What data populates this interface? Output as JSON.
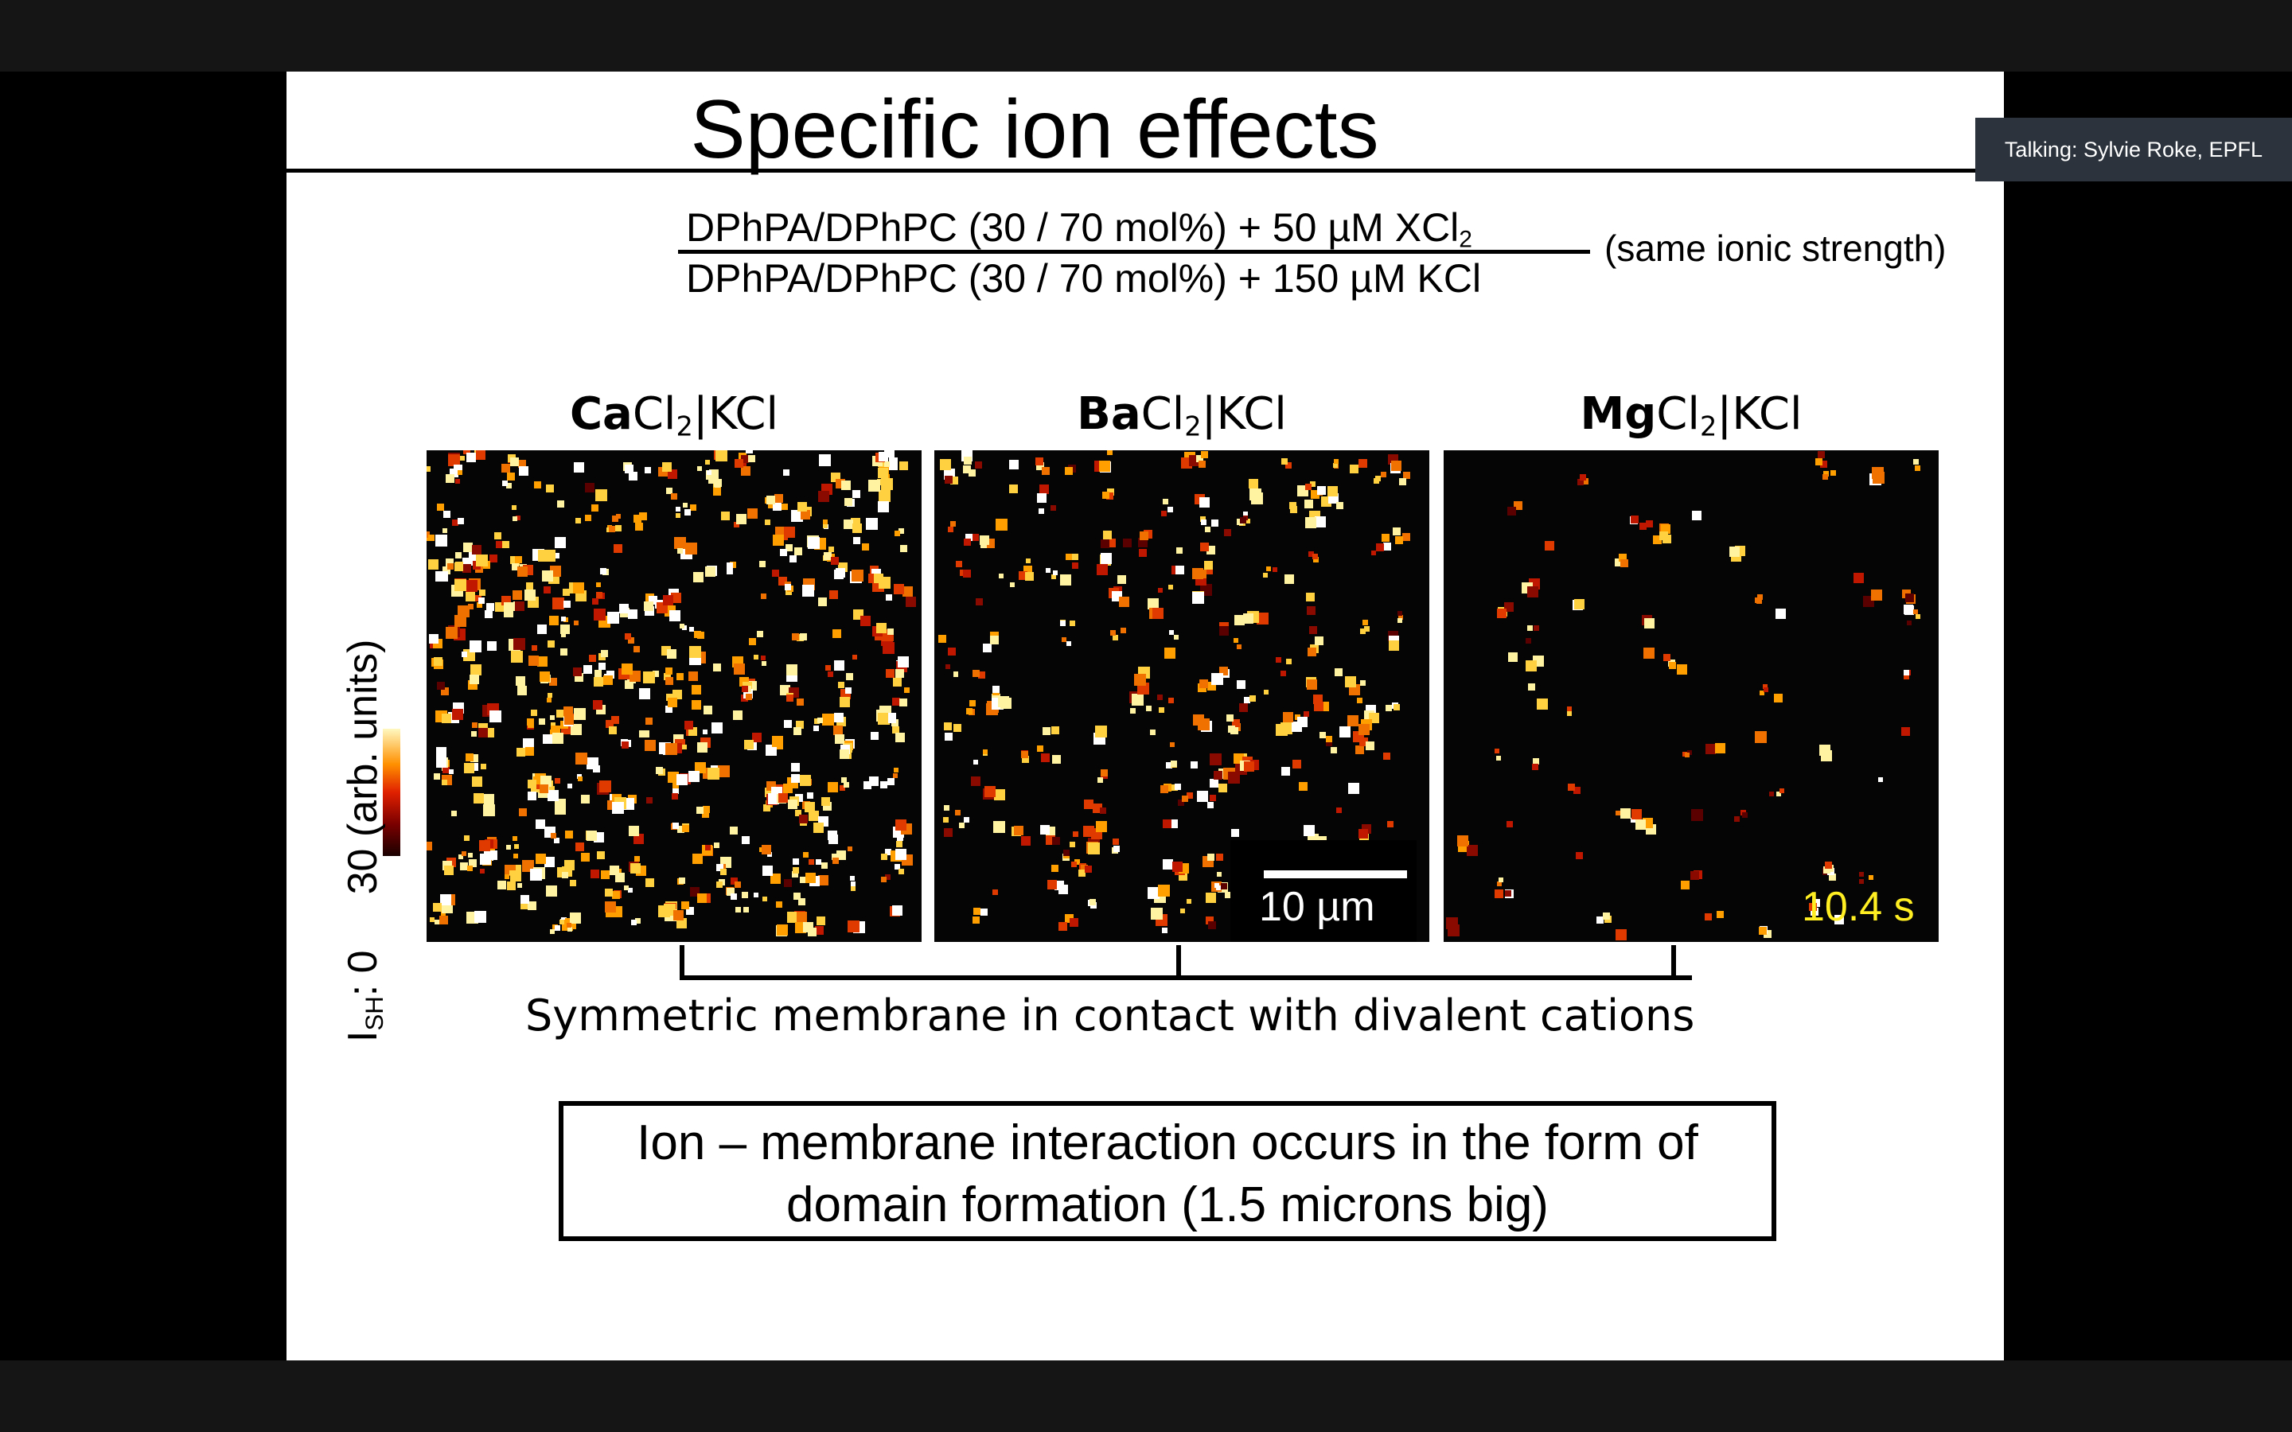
{
  "speaker": {
    "label": "Talking: Sylvie Roke, EPFL"
  },
  "slide": {
    "title": "Specific ion effects",
    "fraction": {
      "numerator_main": "DPhPA/DPhPC (30 / 70 mol%) + 50 µM XCl",
      "numerator_sub": "2",
      "denominator": "DPhPA/DPhPC (30 / 70 mol%) + 150 µM KCl",
      "note": "(same ionic strength)"
    },
    "panels": [
      {
        "bold": "Ca",
        "rest": "Cl",
        "sub": "2",
        "tail": "|KCl"
      },
      {
        "bold": "Ba",
        "rest": "Cl",
        "sub": "2",
        "tail": "|KCl"
      },
      {
        "bold": "Mg",
        "rest": "Cl",
        "sub": "2",
        "tail": "|KCl"
      }
    ],
    "colorbar": {
      "label_main": "I",
      "label_sub": "SH",
      "label_rest": ": 0",
      "label_max": "30 (arb. units)"
    },
    "scalebar_label": "10 µm",
    "time_label": "10.4 s",
    "caption": "Symmetric membrane in contact with divalent cations",
    "conclusion": {
      "line1": "Ion – membrane interaction occurs in the form of",
      "line2": "domain formation (1.5 microns big)"
    }
  }
}
